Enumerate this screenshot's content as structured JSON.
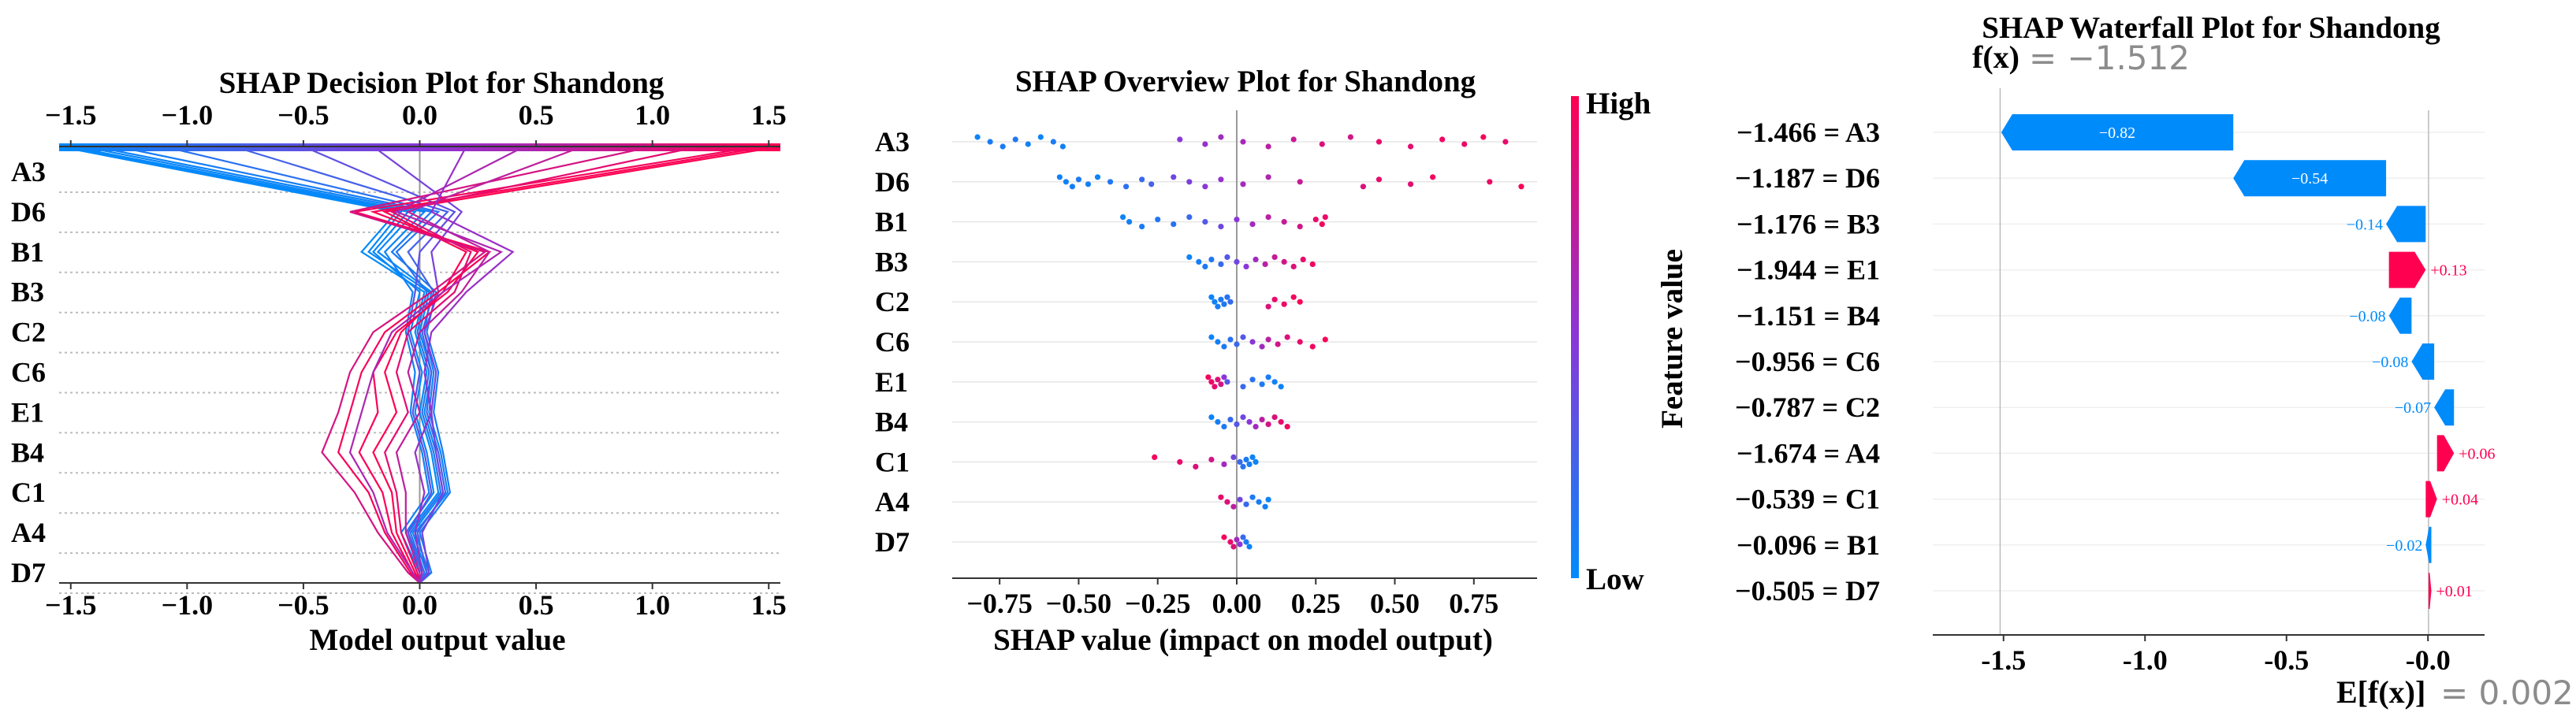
{
  "colors": {
    "positive": "#ff0051",
    "negative": "#008bfb",
    "mid": "#8a36d8",
    "grid": "#cccccc"
  },
  "chart_data": [
    {
      "type": "line",
      "title": "SHAP Decision Plot for Shandong",
      "xlabel": "Model output value",
      "xlim": [
        -1.55,
        1.55
      ],
      "ticks": [
        -1.5,
        -1.0,
        -0.5,
        0.0,
        0.5,
        1.0,
        1.5
      ],
      "tick_labels": [
        "−1.5",
        "−1.0",
        "−0.5",
        "0.0",
        "0.5",
        "1.0",
        "1.5"
      ],
      "features": [
        "A3",
        "D6",
        "B1",
        "B3",
        "C2",
        "C6",
        "E1",
        "B4",
        "C1",
        "A4",
        "D7"
      ],
      "base_value": 0.0,
      "series": [
        {
          "name": "s1",
          "x": [
            0.0,
            0.02,
            -0.05,
            0.08,
            0.05,
            0.0,
            0.03,
            -0.02,
            0.02,
            -0.25,
            -0.1,
            -1.55
          ]
        },
        {
          "name": "s2",
          "x": [
            0.0,
            0.03,
            -0.03,
            0.1,
            0.07,
            0.02,
            0.05,
            0.0,
            0.04,
            -0.22,
            -0.08,
            -1.52
          ]
        },
        {
          "name": "s3",
          "x": [
            0.0,
            0.01,
            -0.06,
            0.06,
            0.03,
            -0.02,
            0.01,
            -0.04,
            0.0,
            -0.2,
            -0.05,
            -1.5
          ]
        },
        {
          "name": "s4",
          "x": [
            0.0,
            0.04,
            -0.02,
            0.12,
            0.09,
            0.04,
            0.06,
            0.02,
            0.05,
            -0.18,
            -0.02,
            -1.45
          ]
        },
        {
          "name": "s5",
          "x": [
            0.0,
            0.0,
            -0.08,
            0.04,
            0.01,
            -0.04,
            -0.02,
            -0.06,
            -0.03,
            -0.15,
            0.02,
            -1.4
          ]
        },
        {
          "name": "s6",
          "x": [
            0.0,
            0.05,
            0.0,
            0.13,
            0.1,
            0.06,
            0.08,
            0.03,
            0.07,
            -0.12,
            0.05,
            -1.3
          ]
        },
        {
          "name": "s7",
          "x": [
            0.0,
            0.02,
            -0.04,
            0.09,
            0.06,
            0.01,
            0.04,
            -0.01,
            0.03,
            -0.1,
            0.08,
            -1.1
          ]
        },
        {
          "name": "s8",
          "x": [
            0.0,
            0.03,
            -0.01,
            0.11,
            0.08,
            0.03,
            0.05,
            0.01,
            0.06,
            -0.05,
            0.12,
            -0.8
          ]
        },
        {
          "name": "s9",
          "x": [
            0.0,
            0.01,
            -0.05,
            0.05,
            0.02,
            -0.03,
            0.0,
            -0.05,
            -0.02,
            0.0,
            0.15,
            -0.5
          ]
        },
        {
          "name": "s10",
          "x": [
            0.0,
            0.04,
            0.01,
            0.1,
            0.07,
            0.05,
            0.07,
            0.02,
            0.08,
            0.05,
            0.18,
            -0.2
          ]
        },
        {
          "name": "s11",
          "x": [
            0.0,
            -0.02,
            -0.1,
            -0.12,
            -0.2,
            -0.1,
            -0.15,
            -0.08,
            0.1,
            0.2,
            -0.15,
            1.55
          ]
        },
        {
          "name": "s12",
          "x": [
            0.0,
            -0.03,
            -0.12,
            -0.16,
            -0.26,
            -0.18,
            -0.2,
            -0.1,
            0.12,
            0.25,
            -0.2,
            1.5
          ]
        },
        {
          "name": "s13",
          "x": [
            0.0,
            -0.04,
            -0.15,
            -0.22,
            -0.35,
            -0.3,
            -0.25,
            -0.15,
            0.08,
            0.3,
            -0.28,
            1.45
          ]
        },
        {
          "name": "s14",
          "x": [
            0.0,
            -0.01,
            -0.08,
            -0.1,
            -0.15,
            -0.05,
            -0.1,
            -0.05,
            0.15,
            0.22,
            -0.12,
            1.2
          ]
        },
        {
          "name": "s15",
          "x": [
            0.0,
            -0.05,
            -0.18,
            -0.28,
            -0.42,
            -0.35,
            -0.3,
            -0.2,
            0.05,
            0.28,
            -0.3,
            1.0
          ]
        },
        {
          "name": "s16",
          "x": [
            0.0,
            0.0,
            -0.06,
            -0.06,
            -0.1,
            0.0,
            -0.05,
            0.0,
            0.18,
            0.3,
            -0.05,
            0.7
          ]
        },
        {
          "name": "s17",
          "x": [
            0.0,
            -0.03,
            -0.14,
            -0.2,
            -0.3,
            -0.25,
            -0.2,
            -0.12,
            0.1,
            0.35,
            -0.1,
            0.45
          ]
        },
        {
          "name": "s18",
          "x": [
            0.0,
            0.01,
            -0.02,
            0.02,
            -0.02,
            0.05,
            0.02,
            0.05,
            0.2,
            0.4,
            0.05,
            0.2
          ]
        }
      ]
    },
    {
      "type": "scatter",
      "title": "SHAP Overview Plot for Shandong",
      "xlabel": "SHAP value (impact on model output)",
      "xlim": [
        -0.9,
        0.95
      ],
      "ticks": [
        -0.75,
        -0.5,
        -0.25,
        0.0,
        0.25,
        0.5,
        0.75
      ],
      "tick_labels": [
        "−0.75",
        "−0.50",
        "−0.25",
        "0.00",
        "0.25",
        "0.50",
        "0.75"
      ],
      "features": [
        "A3",
        "D6",
        "B1",
        "B3",
        "C2",
        "C6",
        "E1",
        "B4",
        "C1",
        "A4",
        "D7"
      ],
      "colorbar": {
        "label": "Feature value",
        "high": "High",
        "low": "Low"
      },
      "points": [
        {
          "feature": "A3",
          "x": [
            -0.82,
            -0.78,
            -0.74,
            -0.7,
            -0.66,
            -0.62,
            -0.58,
            -0.55,
            -0.18,
            -0.1,
            -0.05,
            0.02,
            0.1,
            0.18,
            0.27,
            0.36,
            0.45,
            0.55,
            0.65,
            0.72,
            0.78,
            0.85
          ],
          "v": [
            0.05,
            0.08,
            0.1,
            0.12,
            0.06,
            0.04,
            0.09,
            0.07,
            0.5,
            0.55,
            0.6,
            0.62,
            0.7,
            0.75,
            0.85,
            0.8,
            0.9,
            0.88,
            0.95,
            0.92,
            0.97,
            0.9
          ]
        },
        {
          "feature": "D6",
          "x": [
            -0.56,
            -0.54,
            -0.52,
            -0.5,
            -0.47,
            -0.44,
            -0.4,
            -0.35,
            -0.3,
            -0.27,
            -0.2,
            -0.15,
            -0.1,
            -0.05,
            0.02,
            0.1,
            0.2,
            0.4,
            0.45,
            0.55,
            0.62,
            0.8,
            0.9
          ],
          "v": [
            0.05,
            0.06,
            0.08,
            0.1,
            0.07,
            0.04,
            0.12,
            0.15,
            0.2,
            0.25,
            0.4,
            0.45,
            0.5,
            0.55,
            0.6,
            0.65,
            0.75,
            0.85,
            0.9,
            0.88,
            0.95,
            0.92,
            0.97
          ]
        },
        {
          "feature": "B1",
          "x": [
            -0.36,
            -0.34,
            -0.3,
            -0.25,
            -0.2,
            -0.15,
            -0.1,
            -0.05,
            0.0,
            0.05,
            0.1,
            0.15,
            0.2,
            0.25,
            0.27,
            0.28
          ],
          "v": [
            0.05,
            0.07,
            0.1,
            0.12,
            0.15,
            0.2,
            0.3,
            0.4,
            0.5,
            0.6,
            0.7,
            0.75,
            0.8,
            0.9,
            0.95,
            0.92
          ]
        },
        {
          "feature": "B3",
          "x": [
            -0.15,
            -0.12,
            -0.1,
            -0.08,
            -0.05,
            -0.03,
            0.0,
            0.03,
            0.06,
            0.09,
            0.12,
            0.15,
            0.18,
            0.21,
            0.24
          ],
          "v": [
            0.05,
            0.07,
            0.1,
            0.12,
            0.2,
            0.3,
            0.4,
            0.5,
            0.6,
            0.7,
            0.75,
            0.8,
            0.85,
            0.9,
            0.95
          ]
        },
        {
          "feature": "C2",
          "x": [
            -0.08,
            -0.07,
            -0.06,
            -0.05,
            -0.04,
            -0.03,
            -0.02,
            0.1,
            0.12,
            0.15,
            0.18,
            0.2
          ],
          "v": [
            0.05,
            0.06,
            0.08,
            0.1,
            0.12,
            0.15,
            0.2,
            0.85,
            0.9,
            0.92,
            0.95,
            0.97
          ]
        },
        {
          "feature": "C6",
          "x": [
            -0.08,
            -0.06,
            -0.04,
            -0.02,
            0.0,
            0.02,
            0.05,
            0.08,
            0.1,
            0.13,
            0.16,
            0.2,
            0.24,
            0.28
          ],
          "v": [
            0.05,
            0.07,
            0.1,
            0.15,
            0.2,
            0.3,
            0.5,
            0.6,
            0.7,
            0.8,
            0.85,
            0.9,
            0.95,
            0.97
          ]
        },
        {
          "feature": "E1",
          "x": [
            -0.09,
            -0.08,
            -0.07,
            -0.06,
            -0.05,
            -0.04,
            -0.03,
            0.02,
            0.05,
            0.08,
            0.1,
            0.12,
            0.14
          ],
          "v": [
            0.95,
            0.92,
            0.9,
            0.85,
            0.8,
            0.5,
            0.3,
            0.2,
            0.15,
            0.1,
            0.08,
            0.06,
            0.05
          ]
        },
        {
          "feature": "B4",
          "x": [
            -0.08,
            -0.06,
            -0.04,
            -0.02,
            0.0,
            0.02,
            0.04,
            0.06,
            0.08,
            0.1,
            0.12,
            0.14,
            0.16
          ],
          "v": [
            0.05,
            0.08,
            0.1,
            0.2,
            0.3,
            0.4,
            0.5,
            0.6,
            0.7,
            0.8,
            0.85,
            0.9,
            0.95
          ]
        },
        {
          "feature": "C1",
          "x": [
            -0.26,
            -0.18,
            -0.13,
            -0.08,
            -0.04,
            -0.01,
            0.01,
            0.02,
            0.03,
            0.04,
            0.05,
            0.06
          ],
          "v": [
            0.95,
            0.9,
            0.85,
            0.8,
            0.6,
            0.4,
            0.2,
            0.15,
            0.1,
            0.08,
            0.06,
            0.05
          ]
        },
        {
          "feature": "A4",
          "x": [
            -0.05,
            -0.03,
            -0.01,
            0.01,
            0.03,
            0.05,
            0.07,
            0.09,
            0.1
          ],
          "v": [
            0.9,
            0.85,
            0.7,
            0.4,
            0.2,
            0.1,
            0.08,
            0.06,
            0.05
          ]
        },
        {
          "feature": "D7",
          "x": [
            -0.04,
            -0.02,
            -0.01,
            0.0,
            0.01,
            0.02,
            0.03,
            0.04
          ],
          "v": [
            0.95,
            0.9,
            0.85,
            0.6,
            0.5,
            0.2,
            0.1,
            0.05
          ]
        }
      ]
    },
    {
      "type": "bar",
      "subtype": "waterfall",
      "title": "SHAP Waterfall Plot for Shandong",
      "fx_label": "f(x)",
      "fx_value": "= −1.512",
      "ex_label": "E[f(x)]",
      "ex_value": "= 0.002",
      "xlim": [
        -1.75,
        0.2
      ],
      "ticks": [
        -1.5,
        -1.0,
        -0.5,
        0.0
      ],
      "tick_labels": [
        "-1.5",
        "-1.0",
        "-0.5",
        "-0.0"
      ],
      "features": [
        "A3",
        "D6",
        "B3",
        "E1",
        "B4",
        "C6",
        "C2",
        "A4",
        "C1",
        "B1",
        "D7"
      ],
      "feature_values": [
        "−1.466",
        "−1.187",
        "−1.176",
        "−1.944",
        "−1.151",
        "−0.956",
        "−0.787",
        "−1.674",
        "−0.539",
        "−0.096",
        "−0.505"
      ],
      "feature_rows": [
        "−1.466 = A3",
        "−1.187 = D6",
        "−1.176 = B3",
        "−1.944 = E1",
        "−1.151 = B4",
        "−0.956 = C6",
        "−0.787 = C2",
        "−1.674 = A4",
        "−0.539 = C1",
        "−0.096 = B1",
        "−0.505 = D7"
      ],
      "values": [
        -0.82,
        -0.54,
        -0.14,
        0.13,
        -0.08,
        -0.08,
        -0.07,
        0.06,
        0.04,
        -0.02,
        0.01
      ],
      "value_labels": [
        "−0.82",
        "−0.54",
        "−0.14",
        "+0.13",
        "−0.08",
        "−0.08",
        "−0.07",
        "+0.06",
        "+0.04",
        "−0.02",
        "+0.01"
      ],
      "base_value": 0.002,
      "output_value": -1.512
    }
  ]
}
